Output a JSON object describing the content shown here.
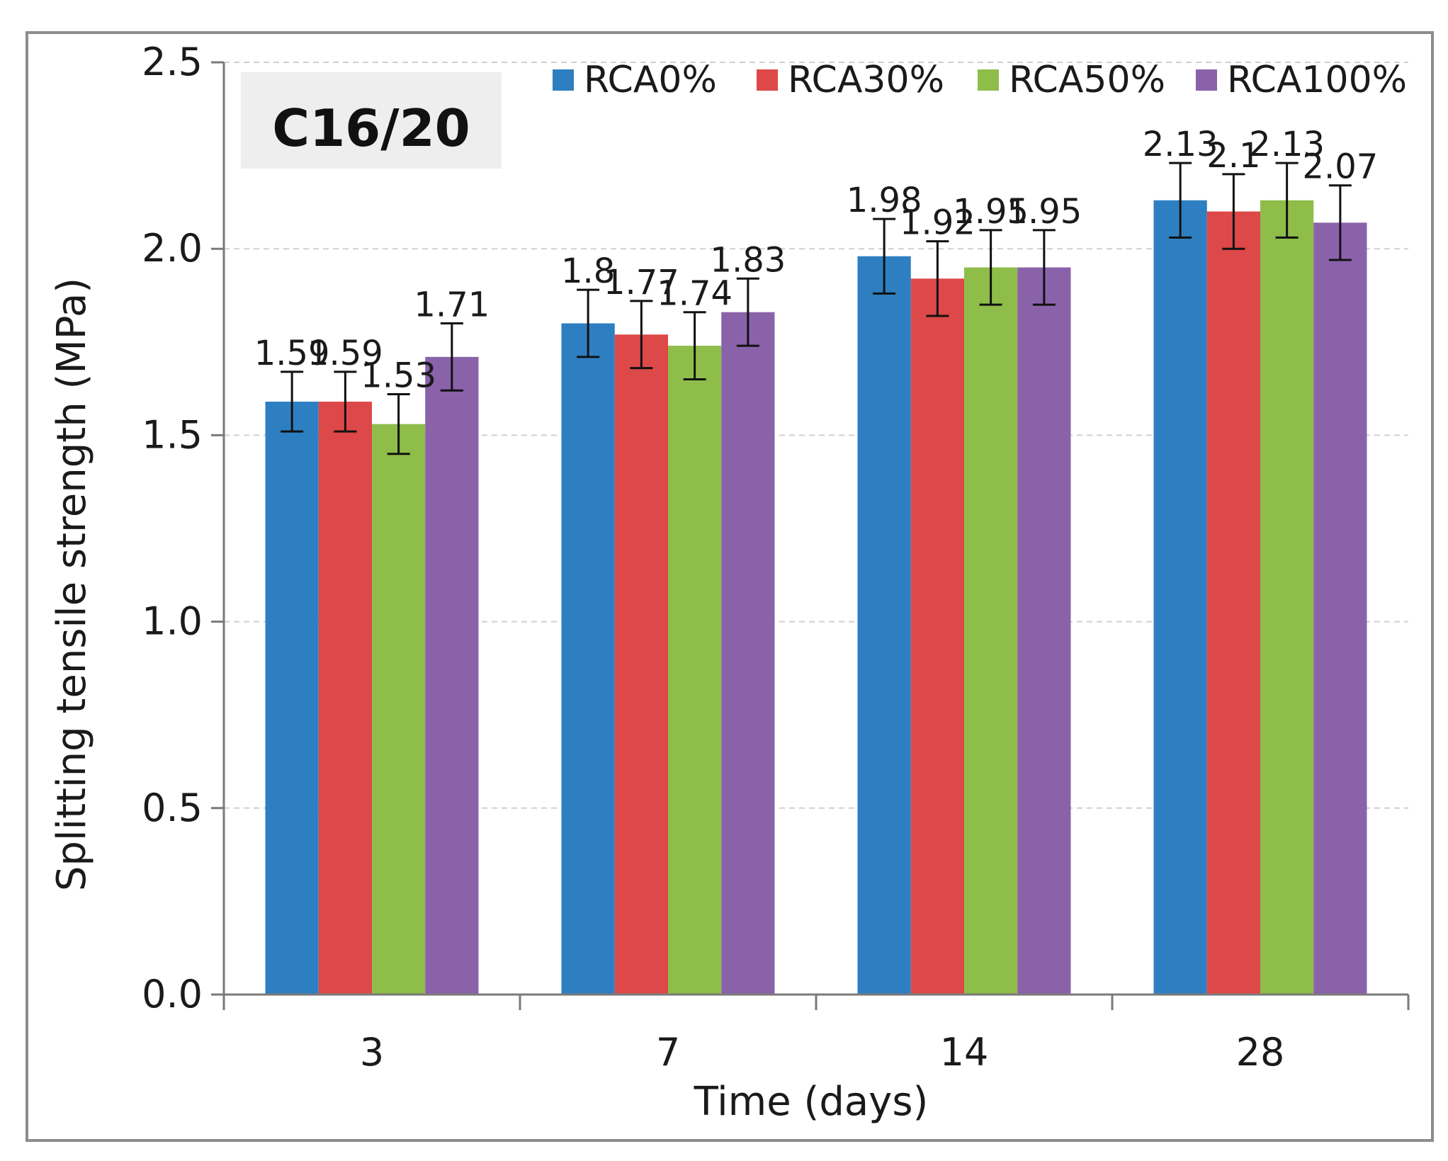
{
  "chart_data": {
    "type": "bar",
    "title": "C16/20",
    "xlabel": "Time (days)",
    "ylabel": "Splitting tensile strength (MPa)",
    "categories": [
      "3",
      "7",
      "14",
      "28"
    ],
    "ylim": [
      0,
      2.5
    ],
    "yticks": [
      "0.0",
      "0.5",
      "1.0",
      "1.5",
      "2.0",
      "2.5"
    ],
    "grid": true,
    "legend_position": "top-right",
    "series": [
      {
        "name": "RCA0%",
        "color": "#2e7fc1",
        "values": [
          1.59,
          1.8,
          1.98,
          2.13
        ],
        "labels": [
          "1.59",
          "1.8",
          "1.98",
          "2.13"
        ],
        "error": [
          0.08,
          0.09,
          0.1,
          0.1
        ]
      },
      {
        "name": "RCA30%",
        "color": "#dd4848",
        "values": [
          1.59,
          1.77,
          1.92,
          2.1
        ],
        "labels": [
          "1.59",
          "1.77",
          "1.92",
          "2.1"
        ],
        "error": [
          0.08,
          0.09,
          0.1,
          0.1
        ]
      },
      {
        "name": "RCA50%",
        "color": "#8ebd4a",
        "values": [
          1.53,
          1.74,
          1.95,
          2.13
        ],
        "labels": [
          "1.53",
          "1.74",
          "1.95",
          "2.13"
        ],
        "error": [
          0.08,
          0.09,
          0.1,
          0.1
        ]
      },
      {
        "name": "RCA100%",
        "color": "#8a62aa",
        "values": [
          1.71,
          1.83,
          1.95,
          2.07
        ],
        "labels": [
          "1.71",
          "1.83",
          "1.95",
          "2.07"
        ],
        "error": [
          0.09,
          0.09,
          0.1,
          0.1
        ]
      }
    ]
  }
}
